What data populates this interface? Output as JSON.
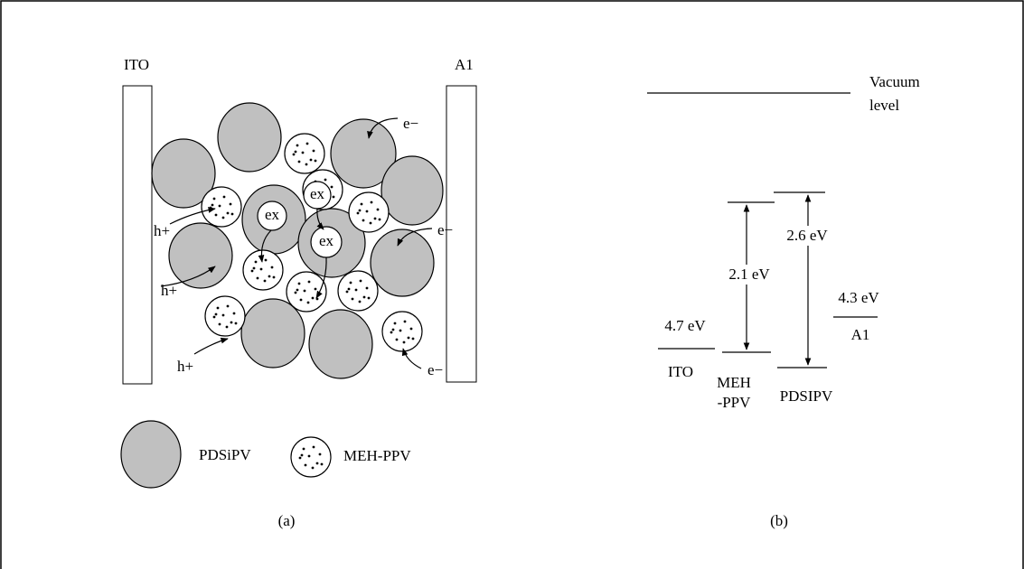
{
  "panel_a": {
    "caption": "(a)",
    "electrodes": [
      "ITO",
      "A1"
    ],
    "carriers": [
      "e−",
      "e−",
      "e−",
      "h+",
      "h+",
      "h+"
    ],
    "excitons": [
      "ex",
      "ex",
      "ex"
    ],
    "legend": [
      "PDSiPV",
      "MEH-PPV"
    ]
  },
  "panel_b": {
    "caption": "(b)",
    "vacuum_level": [
      "Vacuum",
      "level"
    ],
    "work_functions": [
      "4.7 eV",
      "4.3 eV"
    ],
    "electrodes": [
      "ITO",
      "A1"
    ],
    "band_gaps": [
      "2.1 eV",
      "2.6 eV"
    ],
    "polymers": [
      [
        "MEH",
        "-PPV"
      ],
      "PDSIPV"
    ]
  }
}
